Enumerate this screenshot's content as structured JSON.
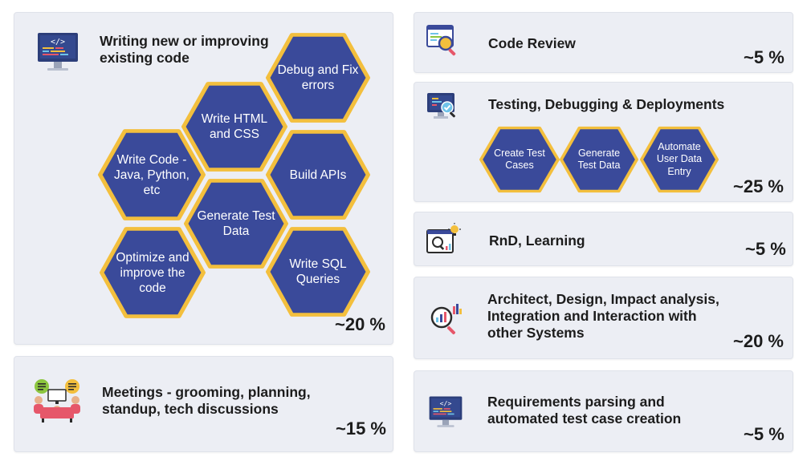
{
  "colors": {
    "card_bg": "#eceef4",
    "hex_fill": "#3a4a9a",
    "hex_border": "#f3bf3d",
    "text": "#1c1c1c"
  },
  "left_top": {
    "title": "Writing new or improving existing code",
    "percent": "~20 %",
    "icon": "code-monitor-icon",
    "hexes": [
      "Debug and Fix errors",
      "Write HTML and CSS",
      "Build APIs",
      "Write Code - Java, Python, etc",
      "Generate Test Data",
      "Optimize and improve the code",
      "Write SQL Queries"
    ]
  },
  "left_bottom": {
    "title": "Meetings - grooming, planning, standup, tech discussions",
    "percent": "~15 %",
    "icon": "meeting-discussion-icon"
  },
  "right": [
    {
      "title": "Code Review",
      "percent": "~5 %",
      "icon": "code-review-icon"
    },
    {
      "title": "Testing, Debugging & Deployments",
      "percent": "~25 %",
      "icon": "testing-monitor-icon",
      "hexes": [
        "Create Test Cases",
        "Generate Test Data",
        "Automate User Data Entry"
      ]
    },
    {
      "title": "RnD, Learning",
      "percent": "~5 %",
      "icon": "research-idea-icon"
    },
    {
      "title": "Architect, Design, Impact analysis, Integration and Interaction with other Systems",
      "percent": "~20 %",
      "icon": "analysis-chart-icon"
    },
    {
      "title": "Requirements parsing and automated test case creation",
      "percent": "~5 %",
      "icon": "code-monitor-icon"
    }
  ]
}
